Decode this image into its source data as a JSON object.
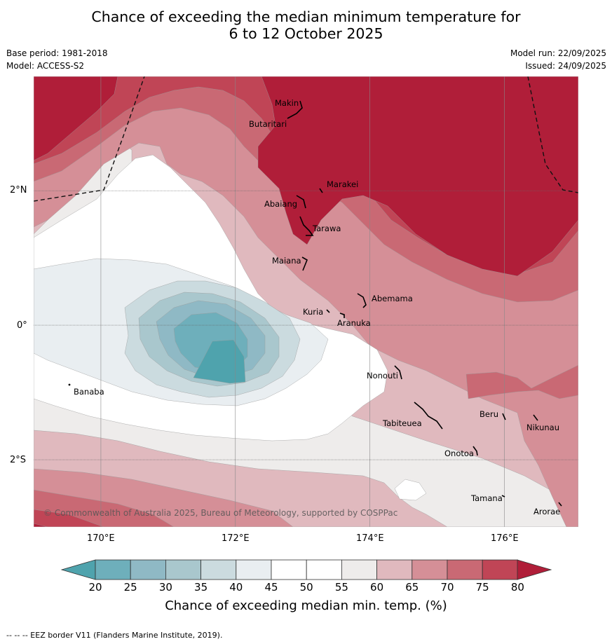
{
  "title": {
    "line1": "Chance of exceeding the median minimum temperature for",
    "line2": "6 to 12 October 2025"
  },
  "meta": {
    "base_period": "Base period: 1981-2018",
    "model": "Model: ACCESS-S2",
    "model_run": "Model run: 22/09/2025",
    "issued": "Issued: 24/09/2025"
  },
  "map": {
    "lon_ticks": [
      "170°E",
      "172°E",
      "174°E",
      "176°E"
    ],
    "lat_ticks": [
      "2°N",
      "0°",
      "2°S"
    ],
    "lon_range": [
      169.0,
      177.1
    ],
    "lat_range": [
      3.7,
      -3.0
    ],
    "copyright": "© Commonwealth of Australia 2025, Bureau of Meteorology, supported by COSPPac",
    "places": [
      {
        "name": "Makin"
      },
      {
        "name": "Butaritari"
      },
      {
        "name": "Marakei"
      },
      {
        "name": "Abaiang"
      },
      {
        "name": "Tarawa"
      },
      {
        "name": "Maiana"
      },
      {
        "name": "Abemama"
      },
      {
        "name": "Kuria"
      },
      {
        "name": "Aranuka"
      },
      {
        "name": "Nonouti"
      },
      {
        "name": "Banaba"
      },
      {
        "name": "Tabiteuea"
      },
      {
        "name": "Beru"
      },
      {
        "name": "Nikunau"
      },
      {
        "name": "Onotoa"
      },
      {
        "name": "Tamana"
      },
      {
        "name": "Arorae"
      }
    ]
  },
  "colorbar": {
    "title": "Chance of exceeding median min. temp. (%)",
    "labels": [
      "20",
      "25",
      "30",
      "35",
      "40",
      "45",
      "50",
      "55",
      "60",
      "65",
      "70",
      "75",
      "80"
    ],
    "colors": {
      "lt20": "#4fa3ad",
      "20-25": "#6eafbb",
      "25-30": "#8fb9c5",
      "30-35": "#a9c7cd",
      "35-40": "#cbdbdf",
      "40-45": "#e9eef1",
      "45-50": "#ffffff",
      "50-55": "#ffffff",
      "55-60": "#eeeceb",
      "60-65": "#e0b9be",
      "65-70": "#d58f97",
      "70-75": "#c96974",
      "75-80": "#c04556",
      "gt80": "#b01e39"
    }
  },
  "footer": "--  --  -- EEZ border V11 (Flanders Marine Institute, 2019)."
}
